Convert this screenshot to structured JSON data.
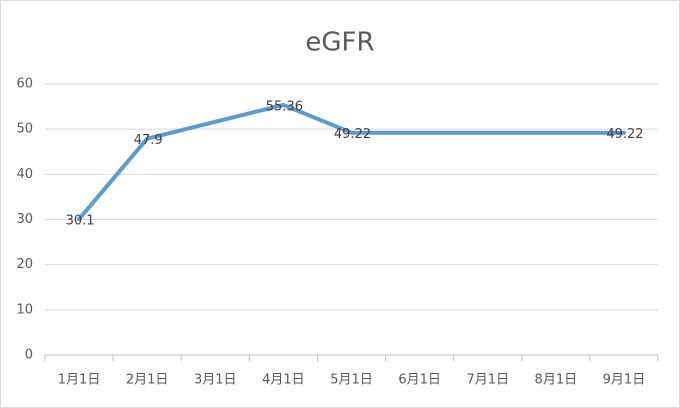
{
  "chart_data": {
    "type": "line",
    "title": "eGFR",
    "categories": [
      "1月1日",
      "2月1日",
      "3月1日",
      "4月1日",
      "5月1日",
      "6月1日",
      "7月1日",
      "8月1日",
      "9月1日"
    ],
    "series": [
      {
        "name": "eGFR",
        "color": "#5b9bd5",
        "x": [
          "1月1日",
          "2月1日",
          "4月1日",
          "5月1日",
          "9月1日"
        ],
        "values": [
          30.1,
          47.9,
          55.36,
          49.22,
          49.22
        ]
      }
    ],
    "ylim": [
      0,
      60
    ],
    "yticks": [
      0,
      10,
      20,
      30,
      40,
      50,
      60
    ],
    "grid": true
  }
}
